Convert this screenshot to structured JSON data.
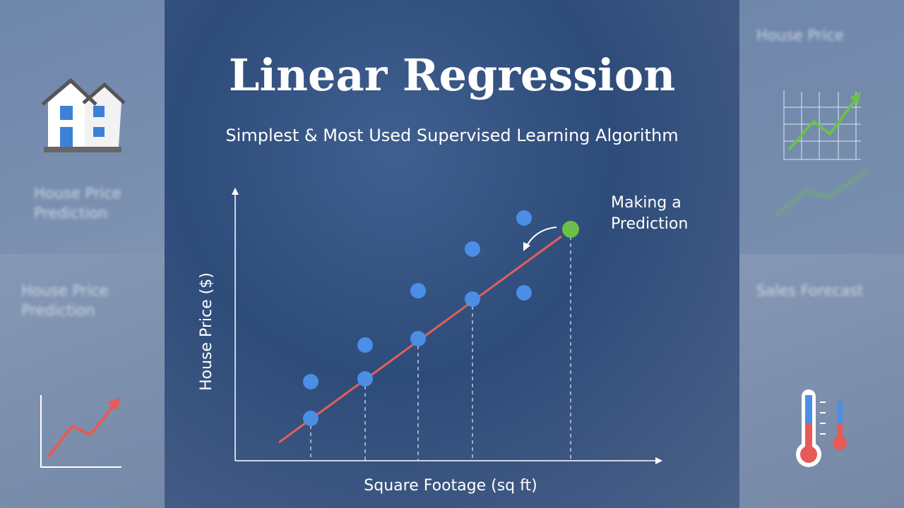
{
  "header": {
    "title": "Linear Regression",
    "subtitle": "Simplest & Most Used Supervised Learning Algorithm"
  },
  "plot": {
    "y_label": "House Price ($)",
    "x_label": "Square Footage (sq ft)",
    "annotation": [
      "Making a",
      "Prediction"
    ]
  },
  "side_panels": {
    "left_top": "House Price Prediction",
    "left_bottom": "House Price Prediction",
    "right_top": "House Price",
    "right_bottom": "Sales Forecast"
  }
}
